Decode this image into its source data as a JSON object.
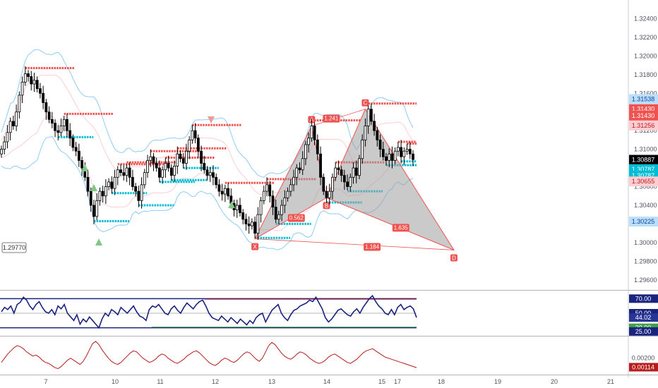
{
  "chart_data": [
    {
      "name": "price",
      "type": "candlestick",
      "ylim": [
        1.295,
        1.326
      ],
      "y_ticks": [
        "1.32400",
        "1.32200",
        "1.32000",
        "1.31800",
        "1.31600",
        "1.31400",
        "1.31200",
        "1.31000",
        "1.30800",
        "1.30600",
        "1.30400",
        "1.30200",
        "1.30000",
        "1.29800",
        "1.29600"
      ],
      "price_markers": [
        {
          "label": "1.31538",
          "value": 1.31538,
          "color": "#bbdefb",
          "text_color": "#0d47a1"
        },
        {
          "label": "1.31430",
          "value": 1.3143,
          "color": "#ef5350",
          "text_color": "#ffffff"
        },
        {
          "label": "1.31430",
          "value": 1.3136,
          "color": "#ef5350",
          "text_color": "#ffffff"
        },
        {
          "label": "1.31256",
          "value": 1.31256,
          "color": "#ffcdd2",
          "text_color": "#b71c1c"
        },
        {
          "label": "1.30887",
          "value": 1.30887,
          "color": "#000000",
          "text_color": "#ffffff"
        },
        {
          "label": "1.30787",
          "value": 1.30787,
          "color": "#00bcd4",
          "text_color": "#ffffff"
        },
        {
          "label": "1.30787",
          "value": 1.30718,
          "color": "#00bcd4",
          "text_color": "#ffffff"
        },
        {
          "label": "1.30655",
          "value": 1.30655,
          "color": "#ffcdd2",
          "text_color": "#b71c1c"
        },
        {
          "label": "1.30225",
          "value": 1.30225,
          "color": "#bbdefb",
          "text_color": "#0d47a1"
        }
      ],
      "left_callout": "1.29770",
      "harmonic_pattern": {
        "points": [
          {
            "label": "X",
            "bar": 85,
            "value": 1.3004
          },
          {
            "label": "A",
            "bar": 104,
            "value": 1.3125
          },
          {
            "label": "B",
            "bar": 109,
            "value": 1.3048
          },
          {
            "label": "C",
            "bar": 122,
            "value": 1.3143
          },
          {
            "label": "D",
            "bar": 148,
            "value": 1.2992
          }
        ],
        "ratios": [
          "0.562",
          "1.241",
          "1.635",
          "1.184"
        ]
      },
      "closes": [
        1.31,
        1.3108,
        1.3118,
        1.313,
        1.3125,
        1.314,
        1.3158,
        1.3172,
        1.3181,
        1.3178,
        1.317,
        1.3174,
        1.3165,
        1.316,
        1.315,
        1.314,
        1.3132,
        1.3128,
        1.312,
        1.3118,
        1.3125,
        1.3132,
        1.312,
        1.3112,
        1.3102,
        1.3098,
        1.3088,
        1.308,
        1.307,
        1.3055,
        1.304,
        1.3028,
        1.3045,
        1.3055,
        1.305,
        1.306,
        1.3065,
        1.3058,
        1.307,
        1.3078,
        1.3075,
        1.3072,
        1.308,
        1.307,
        1.306,
        1.3055,
        1.3045,
        1.3062,
        1.3075,
        1.3088,
        1.3092,
        1.3085,
        1.308,
        1.307,
        1.3078,
        1.3085,
        1.308,
        1.3072,
        1.3082,
        1.3095,
        1.309,
        1.3085,
        1.3098,
        1.311,
        1.312,
        1.3112,
        1.3098,
        1.3085,
        1.3078,
        1.3072,
        1.3075,
        1.307,
        1.3062,
        1.3055,
        1.3052,
        1.3058,
        1.305,
        1.3042,
        1.3035,
        1.304,
        1.3032,
        1.3025,
        1.302,
        1.3018,
        1.3022,
        1.301,
        1.303,
        1.3045,
        1.3055,
        1.3062,
        1.305,
        1.3038,
        1.3025,
        1.303,
        1.304,
        1.3048,
        1.3055,
        1.3062,
        1.307,
        1.308,
        1.3078,
        1.309,
        1.3105,
        1.3112,
        1.3125,
        1.311,
        1.3095,
        1.307,
        1.3055,
        1.3048,
        1.3055,
        1.307,
        1.308,
        1.3078,
        1.3072,
        1.3065,
        1.306,
        1.307,
        1.308,
        1.3072,
        1.309,
        1.311,
        1.3125,
        1.3143,
        1.313,
        1.312,
        1.311,
        1.31,
        1.3092,
        1.3088,
        1.3095,
        1.3088,
        1.3098,
        1.3102,
        1.3092,
        1.3098,
        1.31,
        1.3095,
        1.3089
      ]
    },
    {
      "name": "rsi",
      "type": "line",
      "y_ticks": [
        {
          "label": "70.00",
          "value": 70,
          "color": "#1a237e"
        },
        {
          "label": "50.00",
          "value": 50,
          "color": "#1a237e"
        },
        {
          "label": "44.02",
          "value": 44.02,
          "color": "#283593"
        },
        {
          "label": "30.00",
          "value": 30,
          "color": "#43a047"
        },
        {
          "label": "25.00",
          "value": 25,
          "color": "#1a237e"
        }
      ],
      "levels": [
        70,
        50,
        30
      ],
      "values": [
        52,
        58,
        55,
        60,
        50,
        62,
        65,
        72,
        68,
        60,
        55,
        62,
        66,
        58,
        52,
        50,
        55,
        48,
        60,
        56,
        62,
        50,
        45,
        40,
        48,
        35,
        42,
        38,
        45,
        40,
        35,
        30,
        42,
        50,
        46,
        55,
        52,
        48,
        58,
        54,
        50,
        55,
        60,
        52,
        46,
        44,
        40,
        55,
        60,
        58,
        62,
        56,
        50,
        48,
        56,
        60,
        54,
        50,
        58,
        64,
        60,
        56,
        62,
        66,
        68,
        60,
        50,
        44,
        42,
        40,
        46,
        42,
        38,
        44,
        40,
        36,
        42,
        38,
        34,
        40,
        36,
        44,
        48,
        50,
        38,
        46,
        54,
        58,
        62,
        50,
        44,
        40,
        48,
        54,
        56,
        60,
        62,
        64,
        68,
        66,
        72,
        64,
        56,
        44,
        38,
        42,
        48,
        54,
        56,
        52,
        48,
        46,
        52,
        56,
        50,
        58,
        64,
        70,
        74,
        66,
        60,
        56,
        50,
        48,
        55,
        48,
        58,
        62,
        55,
        58,
        60,
        56,
        44
      ]
    },
    {
      "name": "oscillator",
      "type": "line",
      "y_ticks": [
        {
          "label": "0.00200",
          "value": 0.002
        },
        {
          "label": "0.00114",
          "value": 0.00114
        }
      ],
      "values": [
        0.0016,
        0.002,
        0.0024,
        0.0027,
        0.003,
        0.0032,
        0.0031,
        0.0029,
        0.0026,
        0.0024,
        0.0022,
        0.0023,
        0.0021,
        0.0018,
        0.0016,
        0.0015,
        0.0013,
        0.0011,
        0.001,
        0.0012,
        0.0015,
        0.0018,
        0.002,
        0.0018,
        0.0016,
        0.0014,
        0.0017,
        0.0022,
        0.0028,
        0.0034,
        0.0036,
        0.0033,
        0.0028,
        0.0024,
        0.002,
        0.0017,
        0.0015,
        0.0014,
        0.0016,
        0.0019,
        0.0022,
        0.0025,
        0.0027,
        0.0026,
        0.0023,
        0.002,
        0.0018,
        0.0016,
        0.0017,
        0.0019,
        0.0022,
        0.0024,
        0.0023,
        0.002,
        0.0018,
        0.0016,
        0.0015,
        0.0017,
        0.0019,
        0.0022,
        0.0024,
        0.0026,
        0.0027,
        0.0025,
        0.0022,
        0.0019,
        0.0016,
        0.0014,
        0.0013,
        0.0015,
        0.0018,
        0.002,
        0.0019,
        0.0017,
        0.0016,
        0.0018,
        0.0021,
        0.0024,
        0.0026,
        0.0025,
        0.0022,
        0.0019,
        0.0017,
        0.002,
        0.0026,
        0.0032,
        0.0035,
        0.0033,
        0.0029,
        0.0025,
        0.0022,
        0.002,
        0.0019,
        0.0021,
        0.0024,
        0.0026,
        0.0025,
        0.0023,
        0.002,
        0.0018,
        0.0016,
        0.0015,
        0.0016,
        0.0018,
        0.0021,
        0.0023,
        0.0024,
        0.0022,
        0.002,
        0.0018,
        0.0016,
        0.0015,
        0.0017,
        0.0019,
        0.0022,
        0.0025,
        0.0027,
        0.0028,
        0.0029,
        0.0027,
        0.0025,
        0.0023,
        0.0021,
        0.002,
        0.0019,
        0.0018,
        0.0017,
        0.0016,
        0.0015,
        0.0014,
        0.0013,
        0.0012,
        0.0011
      ]
    }
  ],
  "x_axis": {
    "labels": [
      {
        "label": "7",
        "bar": 7
      },
      {
        "label": "10",
        "bar": 28
      },
      {
        "label": "11",
        "bar": 37
      },
      {
        "label": "12",
        "bar": 50
      },
      {
        "label": "13",
        "bar": 63
      },
      {
        "label": "14",
        "bar": 76
      },
      {
        "label": "15",
        "bar": 89
      },
      {
        "label": "17",
        "bar": 102
      },
      {
        "label": "18",
        "bar": 115
      },
      {
        "label": "19",
        "bar": 128
      },
      {
        "label": "20",
        "bar": 141
      },
      {
        "label": "21",
        "bar": 154
      }
    ]
  },
  "colors": {
    "bull": "#000000",
    "bear": "#000000",
    "resistance": "#ef5350",
    "support": "#00bcd4",
    "pattern_fill": "#9e9e9e",
    "pattern_line": "#ef5350",
    "rsi_line": "#1a237e",
    "osc_line": "#b71c1c",
    "bb_outer": "#90caf9",
    "bb_inner": "#ffcdd2"
  }
}
